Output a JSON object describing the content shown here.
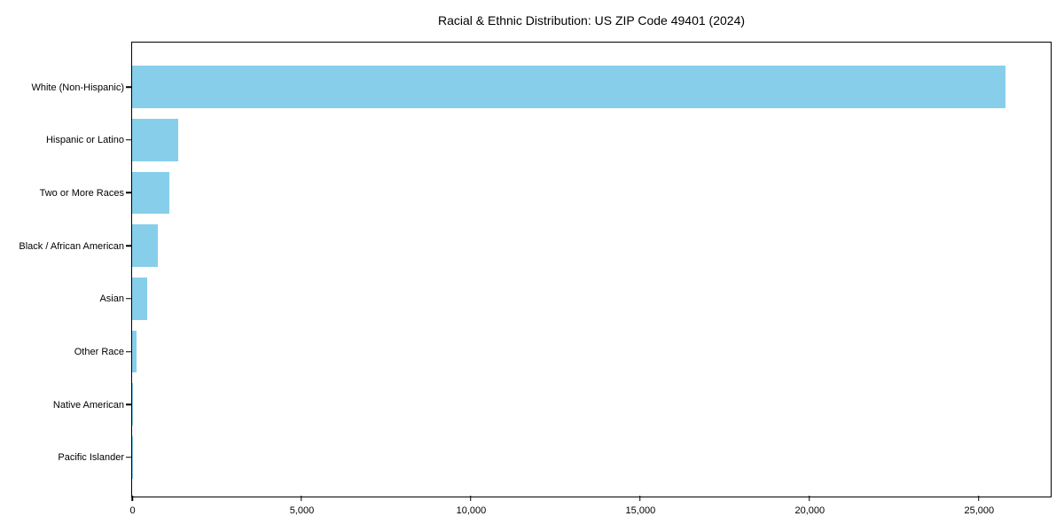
{
  "chart_data": {
    "type": "bar",
    "orientation": "horizontal",
    "title": "Racial & Ethnic Distribution: US ZIP Code 49401 (2024)",
    "categories": [
      "White (Non-Hispanic)",
      "Hispanic or Latino",
      "Two or More Races",
      "Black / African American",
      "Asian",
      "Other Race",
      "Native American",
      "Pacific Islander"
    ],
    "values": [
      25800,
      1370,
      1100,
      770,
      455,
      135,
      25,
      5
    ],
    "xlabel": "",
    "ylabel": "",
    "xlim": [
      0,
      27100
    ],
    "x_ticks": [
      0,
      5000,
      10000,
      15000,
      20000,
      25000
    ],
    "x_tick_labels": [
      "0",
      "5,000",
      "10,000",
      "15,000",
      "20,000",
      "25,000"
    ],
    "bar_color": "#87CEEB",
    "grid": false,
    "legend": "none",
    "background_color": "#ffffff",
    "spine_color": "#000000"
  }
}
